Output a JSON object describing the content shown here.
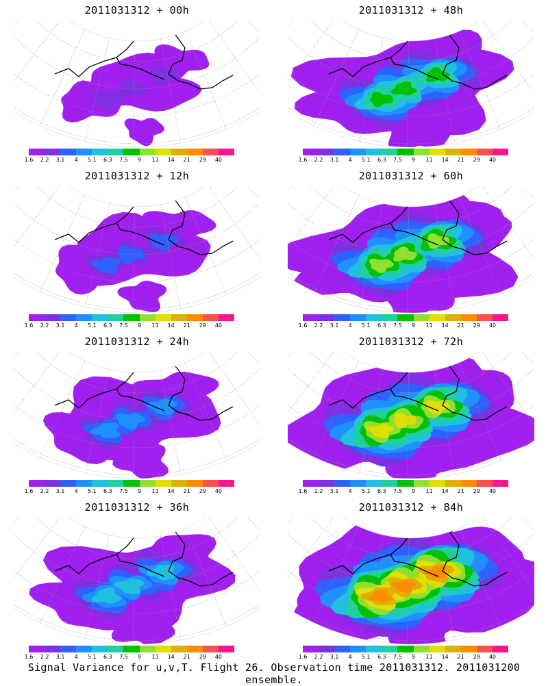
{
  "panels": [
    {
      "title": "2011031312 + 00h",
      "intensity": 0
    },
    {
      "title": "2011031312 + 12h",
      "intensity": 1
    },
    {
      "title": "2011031312 + 24h",
      "intensity": 2
    },
    {
      "title": "2011031312 + 36h",
      "intensity": 3
    },
    {
      "title": "2011031312 + 48h",
      "intensity": 4
    },
    {
      "title": "2011031312 + 60h",
      "intensity": 5
    },
    {
      "title": "2011031312 + 72h",
      "intensity": 6
    },
    {
      "title": "2011031312 + 84h",
      "intensity": 7
    }
  ],
  "colorbar": {
    "labels": [
      "1.6",
      "2.2",
      "3.1",
      "4",
      "5.1",
      "6.3",
      "7.5",
      "9",
      "11",
      "14",
      "21",
      "29",
      "40"
    ],
    "colors": [
      "#a020f0",
      "#7f30e0",
      "#3060ff",
      "#1e90ff",
      "#20c0e0",
      "#20d0a0",
      "#00c000",
      "#90e030",
      "#e0e000",
      "#e0b000",
      "#ff8c00",
      "#ff5050",
      "#ff1490"
    ]
  },
  "caption": "Signal Variance for u,v,T. Flight 26. Observation time 2011031312. 2011031200 ensemble."
}
